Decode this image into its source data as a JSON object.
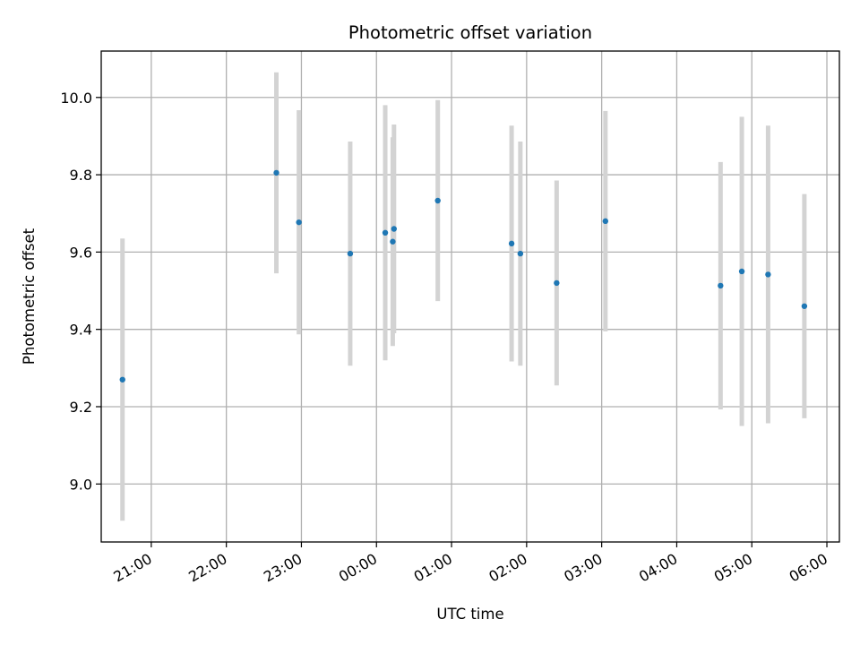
{
  "chart_data": {
    "type": "scatter",
    "title": "Photometric offset variation",
    "xlabel": "UTC time",
    "ylabel": "Photometric offset",
    "x_ticks": [
      "21:00",
      "22:00",
      "23:00",
      "00:00",
      "01:00",
      "02:00",
      "03:00",
      "04:00",
      "05:00",
      "06:00"
    ],
    "y_ticks": [
      "9.0",
      "9.2",
      "9.4",
      "9.6",
      "9.8",
      "10.0"
    ],
    "xlim": [
      "20:20",
      "06:10"
    ],
    "ylim": [
      8.85,
      10.12
    ],
    "grid": true,
    "legend": "none",
    "series": [
      {
        "color": "#1f77b4",
        "error_color": "#d3d3d3",
        "points": [
          {
            "x": "20:37",
            "y": 9.27,
            "yerr": 0.365
          },
          {
            "x": "22:40",
            "y": 9.805,
            "yerr": 0.26
          },
          {
            "x": "22:58",
            "y": 9.677,
            "yerr": 0.29
          },
          {
            "x": "23:39",
            "y": 9.596,
            "yerr": 0.29
          },
          {
            "x": "00:07",
            "y": 9.65,
            "yerr": 0.33
          },
          {
            "x": "00:13",
            "y": 9.627,
            "yerr": 0.27
          },
          {
            "x": "00:14",
            "y": 9.66,
            "yerr": 0.27
          },
          {
            "x": "00:49",
            "y": 9.733,
            "yerr": 0.26
          },
          {
            "x": "01:48",
            "y": 9.622,
            "yerr": 0.305
          },
          {
            "x": "01:55",
            "y": 9.596,
            "yerr": 0.29
          },
          {
            "x": "02:24",
            "y": 9.52,
            "yerr": 0.265
          },
          {
            "x": "03:03",
            "y": 9.68,
            "yerr": 0.285
          },
          {
            "x": "04:35",
            "y": 9.513,
            "yerr": 0.32
          },
          {
            "x": "04:52",
            "y": 9.55,
            "yerr": 0.4
          },
          {
            "x": "05:13",
            "y": 9.542,
            "yerr": 0.385
          },
          {
            "x": "05:42",
            "y": 9.46,
            "yerr": 0.29
          }
        ]
      }
    ]
  }
}
